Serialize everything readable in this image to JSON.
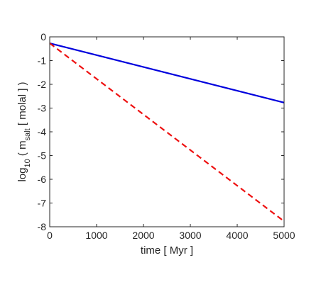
{
  "chart_data": {
    "type": "line",
    "title": "",
    "xlabel": "time [ Myr ]",
    "ylabel": {
      "prefix": "log",
      "prefix_sub": "10",
      "mid": " ( m",
      "mid_sub": "salt",
      "suffix": " [ molal ] )"
    },
    "xlim": [
      0,
      5000
    ],
    "ylim": [
      -8,
      0
    ],
    "xticks": [
      0,
      1000,
      2000,
      3000,
      4000,
      5000
    ],
    "yticks": [
      0,
      -1,
      -2,
      -3,
      -4,
      -5,
      -6,
      -7,
      -8
    ],
    "grid": false,
    "series": [
      {
        "color": "#0000dd",
        "style": "solid",
        "x": [
          0,
          5000
        ],
        "y": [
          -0.27,
          -2.77
        ]
      },
      {
        "color": "#ee1111",
        "style": "dashed",
        "x": [
          0,
          5000
        ],
        "y": [
          -0.27,
          -7.77
        ]
      }
    ]
  }
}
